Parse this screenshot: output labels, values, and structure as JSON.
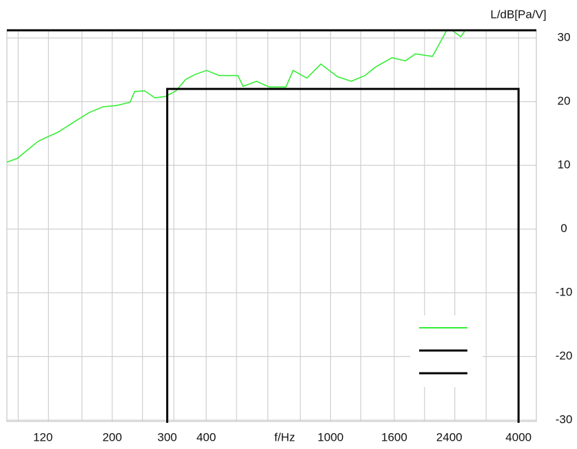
{
  "chart_data": {
    "type": "line",
    "y_axis_label": "L/dB[Pa/V]",
    "x_axis_label": "f/Hz",
    "x_scale": "log",
    "xlim": [
      92,
      4560
    ],
    "ylim": [
      -30.2,
      31.2
    ],
    "xticks": [
      120,
      200,
      300,
      400,
      1000,
      1600,
      2400,
      4000
    ],
    "xgrid": [
      100,
      125,
      160,
      200,
      250,
      315,
      400,
      500,
      630,
      800,
      1000,
      1250,
      1600,
      2000,
      2500,
      3150,
      4000
    ],
    "yticks": [
      -30,
      -20,
      -10,
      0,
      10,
      20,
      30
    ],
    "grid": true,
    "legend": "lower right",
    "series": [
      {
        "color": "#33ee33",
        "x": [
          92,
          99.5,
          107,
          116,
          122,
          134,
          153,
          169,
          187,
          207,
          228,
          236,
          254,
          274,
          296,
          320,
          344,
          370,
          401,
          440,
          505,
          525,
          580,
          636,
          720,
          759,
          840,
          931,
          1054,
          1165,
          1289,
          1390,
          1572,
          1736,
          1870,
          2120,
          2350,
          2448,
          2612,
          2700
        ],
        "values": [
          10.5,
          11.1,
          12.4,
          13.8,
          14.3,
          15.2,
          17.0,
          18.3,
          19.2,
          19.4,
          19.9,
          21.6,
          21.7,
          20.6,
          20.8,
          21.7,
          23.5,
          24.3,
          24.9,
          24.1,
          24.1,
          22.4,
          23.2,
          22.3,
          22.3,
          24.9,
          23.7,
          25.9,
          23.9,
          23.2,
          24.1,
          25.4,
          26.9,
          26.4,
          27.5,
          27.1,
          31.1,
          31.2,
          30.2,
          31.2
        ]
      },
      {
        "color": "#000000",
        "x": [
          92,
          4560
        ],
        "values": [
          31.2,
          31.2
        ]
      },
      {
        "color": "#000000",
        "x": [
          300,
          300,
          4000,
          4000
        ],
        "values": [
          -31,
          22,
          22,
          -31
        ]
      }
    ]
  }
}
